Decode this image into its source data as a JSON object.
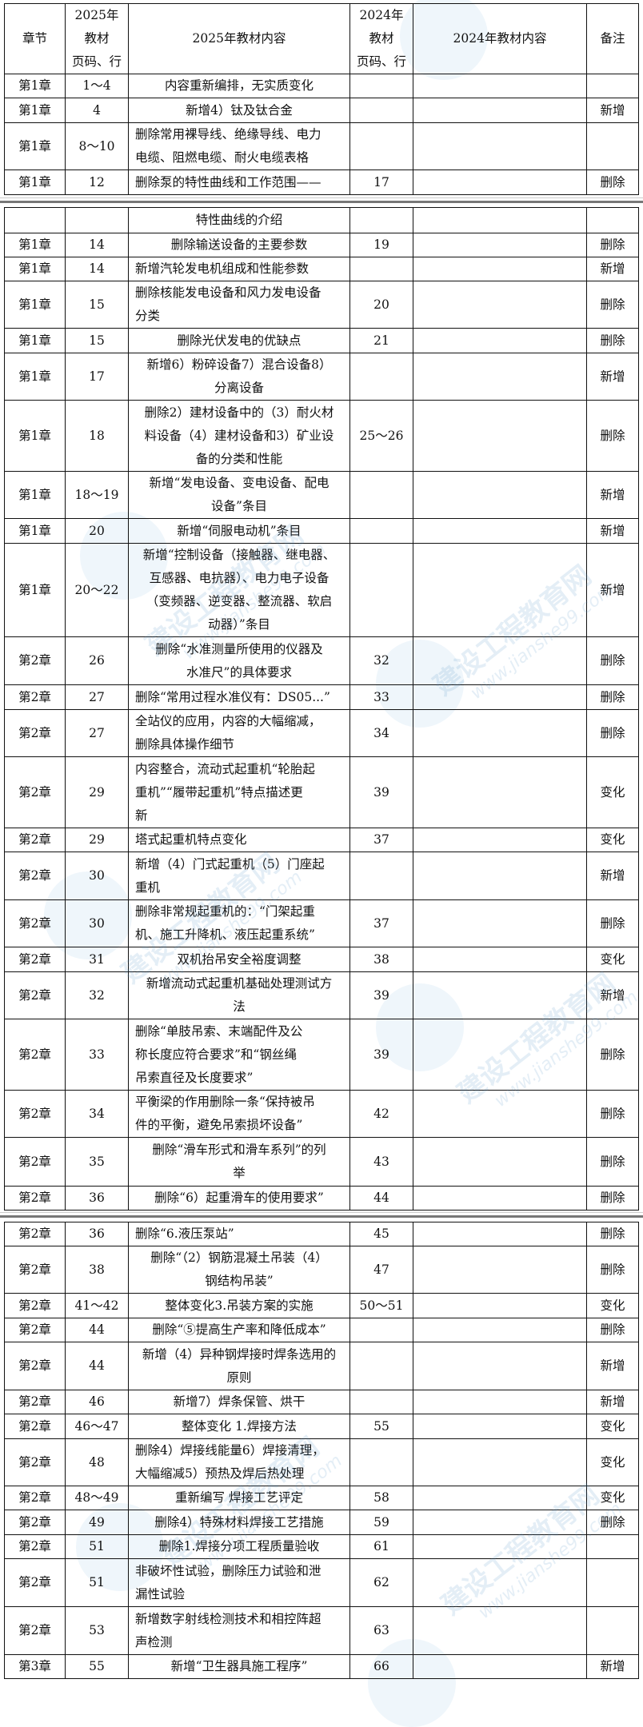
{
  "header": [
    "章节",
    "2025年\n教材\n页码、行",
    "2025年教材内容",
    "2024年\n教材\n页码、行",
    "2024年教材内容",
    "备注"
  ],
  "watermark": {
    "cn": "建设工程教育网",
    "en": "www.jianshe99.com"
  },
  "tables": [
    [
      {
        "chapter": "第1章",
        "p25": "1～4",
        "c25": "内容重新编排，无实质变化",
        "p24": "",
        "c24": "",
        "note": ""
      },
      {
        "chapter": "第1章",
        "p25": "4",
        "c25": "新增4）钛及钛合金",
        "p24": "",
        "c24": "",
        "note": "新增"
      },
      {
        "chapter": "第1章",
        "p25": "8～10",
        "c25": "删除常用裸导线、绝缘导线、电力\n电缆、阻燃电缆、耐火电缆表格",
        "p24": "",
        "c24": "",
        "note": ""
      },
      {
        "chapter": "第1章",
        "p25": "12",
        "c25": "删除泵的特性曲线和工作范围——",
        "p24": "17",
        "c24": "",
        "note": "删除"
      }
    ],
    [
      {
        "chapter": "",
        "p25": "",
        "c25": "特性曲线的介绍",
        "p24": "",
        "c24": "",
        "note": ""
      },
      {
        "chapter": "第1章",
        "p25": "14",
        "c25": "删除输送设备的主要参数",
        "p24": "19",
        "c24": "",
        "note": "删除"
      },
      {
        "chapter": "第1章",
        "p25": "14",
        "c25": "新增汽轮发电机组成和性能参数",
        "p24": "",
        "c24": "",
        "note": "新增"
      },
      {
        "chapter": "第1章",
        "p25": "15",
        "c25": "删除核能发电设备和风力发电设备\n分类",
        "p24": "20",
        "c24": "",
        "note": "删除"
      },
      {
        "chapter": "第1章",
        "p25": "15",
        "c25": "删除光伏发电的优缺点",
        "p24": "21",
        "c24": "",
        "note": "删除"
      },
      {
        "chapter": "第1章",
        "p25": "17",
        "c25": "新增6）粉碎设备7）混合设备8）\n分离设备",
        "p24": "",
        "c24": "",
        "note": "新增"
      },
      {
        "chapter": "第1章",
        "p25": "18",
        "c25": "删除2）建材设备中的（3）耐火材\n料设备（4）建材设备和3）矿业设\n备的分类和性能",
        "p24": "25～26",
        "c24": "",
        "note": "删除"
      },
      {
        "chapter": "第1章",
        "p25": "18～19",
        "c25": "新增“发电设备、变电设备、配电\n设备”条目",
        "p24": "",
        "c24": "",
        "note": "新增"
      },
      {
        "chapter": "第1章",
        "p25": "20",
        "c25": "新增“伺服电动机”条目",
        "p24": "",
        "c24": "",
        "note": "新增"
      },
      {
        "chapter": "第1章",
        "p25": "20～22",
        "c25": "新增“控制设备（接触器、继电器、\n互感器、电抗器）、电力电子设备\n（变频器、逆变器、整流器、软启\n动器）”条目",
        "p24": "",
        "c24": "",
        "note": "新增"
      },
      {
        "chapter": "第2章",
        "p25": "26",
        "c25": "删除“水准测量所使用的仪器及\n水准尺”的具体要求",
        "p24": "32",
        "c24": "",
        "note": "删除"
      },
      {
        "chapter": "第2章",
        "p25": "27",
        "c25": "删除“常用过程水准仪有：DS05...”",
        "p24": "33",
        "c24": "",
        "note": "删除"
      },
      {
        "chapter": "第2章",
        "p25": "27",
        "c25": "全站仪的应用，内容的大幅缩减，\n删除具体操作细节",
        "p24": "34",
        "c24": "",
        "note": "删除"
      },
      {
        "chapter": "第2章",
        "p25": "29",
        "c25": "内容整合，流动式起重机“轮胎起\n重机”“履带起重机”特点描述更\n新",
        "p24": "39",
        "c24": "",
        "note": "变化"
      },
      {
        "chapter": "第2章",
        "p25": "29",
        "c25": "塔式起重机特点变化",
        "p24": "37",
        "c24": "",
        "note": "变化"
      },
      {
        "chapter": "第2章",
        "p25": "30",
        "c25": "新增（4）门式起重机（5）门座起\n重机",
        "p24": "",
        "c24": "",
        "note": "新增"
      },
      {
        "chapter": "第2章",
        "p25": "30",
        "c25": "删除非常规起重机的：“门架起重\n机、施工升降机、液压起重系统”",
        "p24": "37",
        "c24": "",
        "note": "删除"
      },
      {
        "chapter": "第2章",
        "p25": "31",
        "c25": "双机抬吊安全裕度调整",
        "p24": "38",
        "c24": "",
        "note": "变化"
      },
      {
        "chapter": "第2章",
        "p25": "32",
        "c25": "新增流动式起重机基础处理测试方\n法",
        "p24": "39",
        "c24": "",
        "note": "新增"
      },
      {
        "chapter": "第2章",
        "p25": "33",
        "c25": "删除“单肢吊索、末端配件及公\n称长度应符合要求”和“钢丝绳\n吊索直径及长度要求”",
        "p24": "39",
        "c24": "",
        "note": "删除"
      },
      {
        "chapter": "第2章",
        "p25": "34",
        "c25": "平衡梁的作用删除一条“保持被吊\n件的平衡，避免吊索损坏设备”",
        "p24": "42",
        "c24": "",
        "note": "删除"
      },
      {
        "chapter": "第2章",
        "p25": "35",
        "c25": "删除“滑车形式和滑车系列”的列\n举",
        "p24": "43",
        "c24": "",
        "note": "删除"
      },
      {
        "chapter": "第2章",
        "p25": "36",
        "c25": "删除“6）起重滑车的使用要求”",
        "p24": "44",
        "c24": "",
        "note": "删除"
      }
    ],
    [
      {
        "chapter": "第2章",
        "p25": "36",
        "c25": "删除“6.液压泵站”",
        "p24": "45",
        "c24": "",
        "note": "删除"
      },
      {
        "chapter": "第2章",
        "p25": "38",
        "c25": "删除“（2）钢筋混凝土吊装（4）\n钢结构吊装”",
        "p24": "47",
        "c24": "",
        "note": "删除"
      },
      {
        "chapter": "第2章",
        "p25": "41～42",
        "c25": "整体变化3.吊装方案的实施",
        "p24": "50～51",
        "c24": "",
        "note": "变化"
      },
      {
        "chapter": "第2章",
        "p25": "44",
        "c25": "删除“⑤提高生产率和降低成本”",
        "p24": "",
        "c24": "",
        "note": "删除"
      },
      {
        "chapter": "第2章",
        "p25": "44",
        "c25": "新增（4）异种钢焊接时焊条选用的\n原则",
        "p24": "",
        "c24": "",
        "note": "新增"
      },
      {
        "chapter": "第2章",
        "p25": "46",
        "c25": "新增7）焊条保管、烘干",
        "p24": "",
        "c24": "",
        "note": "新增"
      },
      {
        "chapter": "第2章",
        "p25": "46～47",
        "c25": "整体变化 1.焊接方法",
        "p24": "55",
        "c24": "",
        "note": "变化"
      },
      {
        "chapter": "第2章",
        "p25": "48",
        "c25": "删除4）焊接线能量6）焊接清理，\n大幅缩减5）预热及焊后热处理",
        "p24": "",
        "c24": "",
        "note": "变化"
      },
      {
        "chapter": "第2章",
        "p25": "48～49",
        "c25": "重新编写 焊接工艺评定",
        "p24": "58",
        "c24": "",
        "note": "变化"
      },
      {
        "chapter": "第2章",
        "p25": "49",
        "c25": "删除4）特殊材料焊接工艺措施",
        "p24": "59",
        "c24": "",
        "note": "删除"
      },
      {
        "chapter": "第2章",
        "p25": "51",
        "c25": "删除1.焊接分项工程质量验收",
        "p24": "61",
        "c24": "",
        "note": ""
      },
      {
        "chapter": "第2章",
        "p25": "51",
        "c25": "非破坏性试验，删除压力试验和泄\n漏性试验",
        "p24": "62",
        "c24": "",
        "note": ""
      },
      {
        "chapter": "第2章",
        "p25": "53",
        "c25": "新增数字射线检测技术和相控阵超\n声检测",
        "p24": "63",
        "c24": "",
        "note": ""
      },
      {
        "chapter": "第3章",
        "p25": "55",
        "c25": "新增“卫生器具施工程序”",
        "p24": "66",
        "c24": "",
        "note": "新增"
      }
    ]
  ]
}
